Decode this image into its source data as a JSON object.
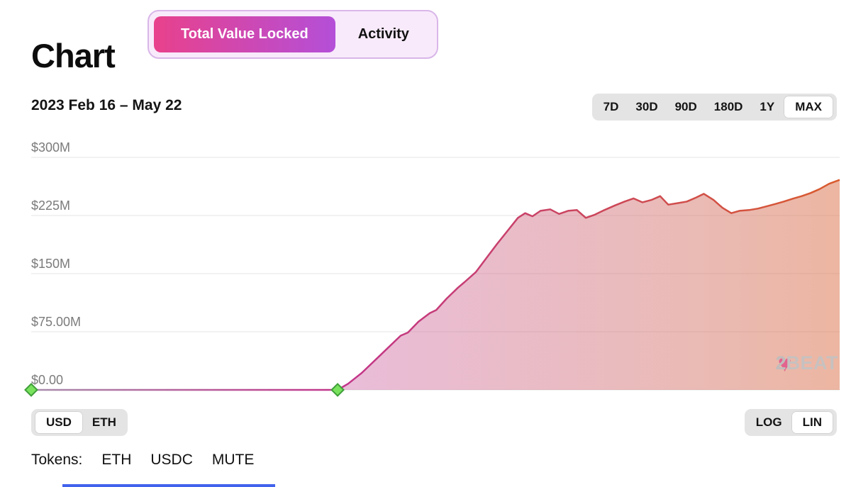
{
  "page": {
    "title": "Chart"
  },
  "tabs": {
    "tvl": "Total Value Locked",
    "activity": "Activity",
    "selected": "Total Value Locked"
  },
  "date_range": "2023 Feb 16 – May 22",
  "timerange": {
    "options": [
      "7D",
      "30D",
      "90D",
      "180D",
      "1Y",
      "MAX"
    ],
    "selected": "MAX"
  },
  "unit_toggle": {
    "options": [
      "USD",
      "ETH"
    ],
    "selected": "USD"
  },
  "scale_toggle": {
    "options": [
      "LOG",
      "LIN"
    ],
    "selected": "LIN"
  },
  "tokens": {
    "label": "Tokens:",
    "items": [
      "ETH",
      "USDC",
      "MUTE"
    ]
  },
  "watermark": {
    "number": "2",
    "text": "BEAT",
    "heart_icon": "heart-icon"
  },
  "chart_data": {
    "type": "area",
    "title": "Total Value Locked",
    "x_range": [
      "2023 Feb 16",
      "2023 May 22"
    ],
    "unit": "USD (millions)",
    "ylim": [
      0,
      300
    ],
    "grid": true,
    "yticks": [
      {
        "value": 300,
        "label": "$300M"
      },
      {
        "value": 225,
        "label": "$225M"
      },
      {
        "value": 150,
        "label": "$150M"
      },
      {
        "value": 75,
        "label": "$75.00M"
      },
      {
        "value": 0,
        "label": "$0.00"
      }
    ],
    "points": [
      {
        "t": 0.0,
        "v": 0
      },
      {
        "t": 0.379,
        "v": 0
      },
      {
        "t": 0.392,
        "v": 8
      },
      {
        "t": 0.409,
        "v": 22
      },
      {
        "t": 0.427,
        "v": 40
      },
      {
        "t": 0.444,
        "v": 57
      },
      {
        "t": 0.457,
        "v": 70
      },
      {
        "t": 0.466,
        "v": 74
      },
      {
        "t": 0.479,
        "v": 88
      },
      {
        "t": 0.493,
        "v": 99
      },
      {
        "t": 0.501,
        "v": 103
      },
      {
        "t": 0.514,
        "v": 118
      },
      {
        "t": 0.528,
        "v": 132
      },
      {
        "t": 0.536,
        "v": 139
      },
      {
        "t": 0.55,
        "v": 152
      },
      {
        "t": 0.563,
        "v": 170
      },
      {
        "t": 0.576,
        "v": 188
      },
      {
        "t": 0.589,
        "v": 205
      },
      {
        "t": 0.602,
        "v": 222
      },
      {
        "t": 0.611,
        "v": 228
      },
      {
        "t": 0.62,
        "v": 224
      },
      {
        "t": 0.63,
        "v": 231
      },
      {
        "t": 0.642,
        "v": 233
      },
      {
        "t": 0.653,
        "v": 227
      },
      {
        "t": 0.664,
        "v": 231
      },
      {
        "t": 0.675,
        "v": 232
      },
      {
        "t": 0.686,
        "v": 222
      },
      {
        "t": 0.697,
        "v": 226
      },
      {
        "t": 0.709,
        "v": 232
      },
      {
        "t": 0.722,
        "v": 238
      },
      {
        "t": 0.734,
        "v": 243
      },
      {
        "t": 0.745,
        "v": 247
      },
      {
        "t": 0.756,
        "v": 242
      },
      {
        "t": 0.767,
        "v": 245
      },
      {
        "t": 0.778,
        "v": 250
      },
      {
        "t": 0.788,
        "v": 239
      },
      {
        "t": 0.8,
        "v": 241
      },
      {
        "t": 0.811,
        "v": 243
      },
      {
        "t": 0.822,
        "v": 248
      },
      {
        "t": 0.832,
        "v": 253
      },
      {
        "t": 0.844,
        "v": 245
      },
      {
        "t": 0.855,
        "v": 235
      },
      {
        "t": 0.866,
        "v": 228
      },
      {
        "t": 0.876,
        "v": 231
      },
      {
        "t": 0.888,
        "v": 232
      },
      {
        "t": 0.899,
        "v": 234
      },
      {
        "t": 0.91,
        "v": 237
      },
      {
        "t": 0.921,
        "v": 240
      },
      {
        "t": 0.931,
        "v": 243
      },
      {
        "t": 0.943,
        "v": 247
      },
      {
        "t": 0.953,
        "v": 250
      },
      {
        "t": 0.964,
        "v": 254
      },
      {
        "t": 0.975,
        "v": 259
      },
      {
        "t": 0.987,
        "v": 266
      },
      {
        "t": 1.0,
        "v": 271
      }
    ],
    "markers": [
      {
        "t": 0.0,
        "v": 0
      },
      {
        "t": 0.379,
        "v": 0
      }
    ],
    "colors": {
      "line_stops": [
        {
          "o": 0,
          "c": "#a98dad"
        },
        {
          "o": 0.38,
          "c": "#c2358b"
        },
        {
          "o": 0.72,
          "c": "#cc4757"
        },
        {
          "o": 1,
          "c": "#d95b2d"
        }
      ],
      "fill_stops": [
        {
          "o": 0,
          "c": "#cf6cab",
          "a": 0.45
        },
        {
          "o": 0.38,
          "c": "#cf6cab",
          "a": 0.45
        },
        {
          "o": 0.8,
          "c": "#d4766e",
          "a": 0.5
        },
        {
          "o": 1,
          "c": "#dd7a55",
          "a": 0.55
        }
      ],
      "marker_fill": "#79e25d",
      "marker_stroke": "#3f9f3a",
      "grid": "#e4e4e4"
    }
  }
}
